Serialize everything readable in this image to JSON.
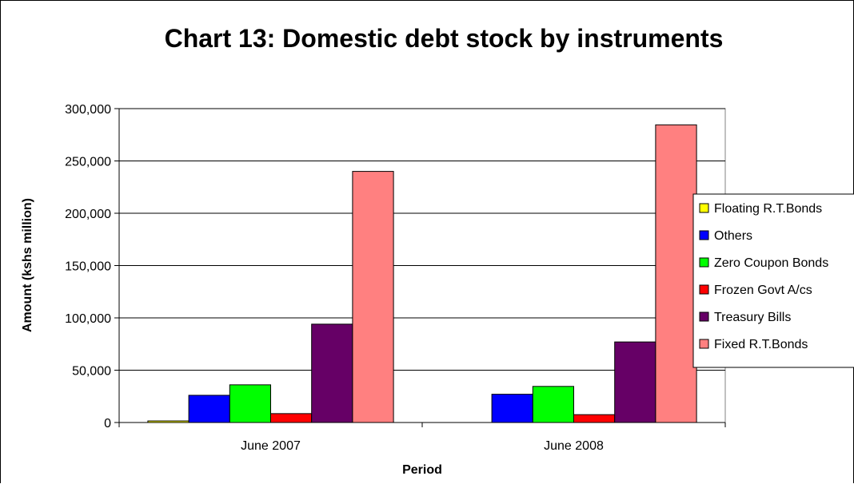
{
  "chart_data": {
    "type": "bar",
    "title": "Chart 13: Domestic debt stock by instruments",
    "xlabel": "Period",
    "ylabel": "Amount (kshs million)",
    "ylim": [
      0,
      300000
    ],
    "yticks": [
      "0",
      "50,000",
      "100,000",
      "150,000",
      "200,000",
      "250,000",
      "300,000"
    ],
    "ytick_values": [
      0,
      50000,
      100000,
      150000,
      200000,
      250000,
      300000
    ],
    "categories": [
      "June 2007",
      "June 2008"
    ],
    "grid": true,
    "legend_position": "right",
    "series": [
      {
        "name": "Floating R.T.Bonds",
        "color": "#ffff00",
        "values": [
          1500,
          0
        ]
      },
      {
        "name": "Others",
        "color": "#0000ff",
        "values": [
          26000,
          27000
        ]
      },
      {
        "name": "Zero Coupon Bonds",
        "color": "#00ff00",
        "values": [
          36000,
          34500
        ]
      },
      {
        "name": "Frozen Govt A/cs",
        "color": "#ff0000",
        "values": [
          8500,
          7500
        ]
      },
      {
        "name": "Treasury Bills",
        "color": "#660066",
        "values": [
          94000,
          77000
        ]
      },
      {
        "name": "Fixed R.T.Bonds",
        "color": "#ff8080",
        "values": [
          240000,
          284500
        ]
      }
    ]
  }
}
